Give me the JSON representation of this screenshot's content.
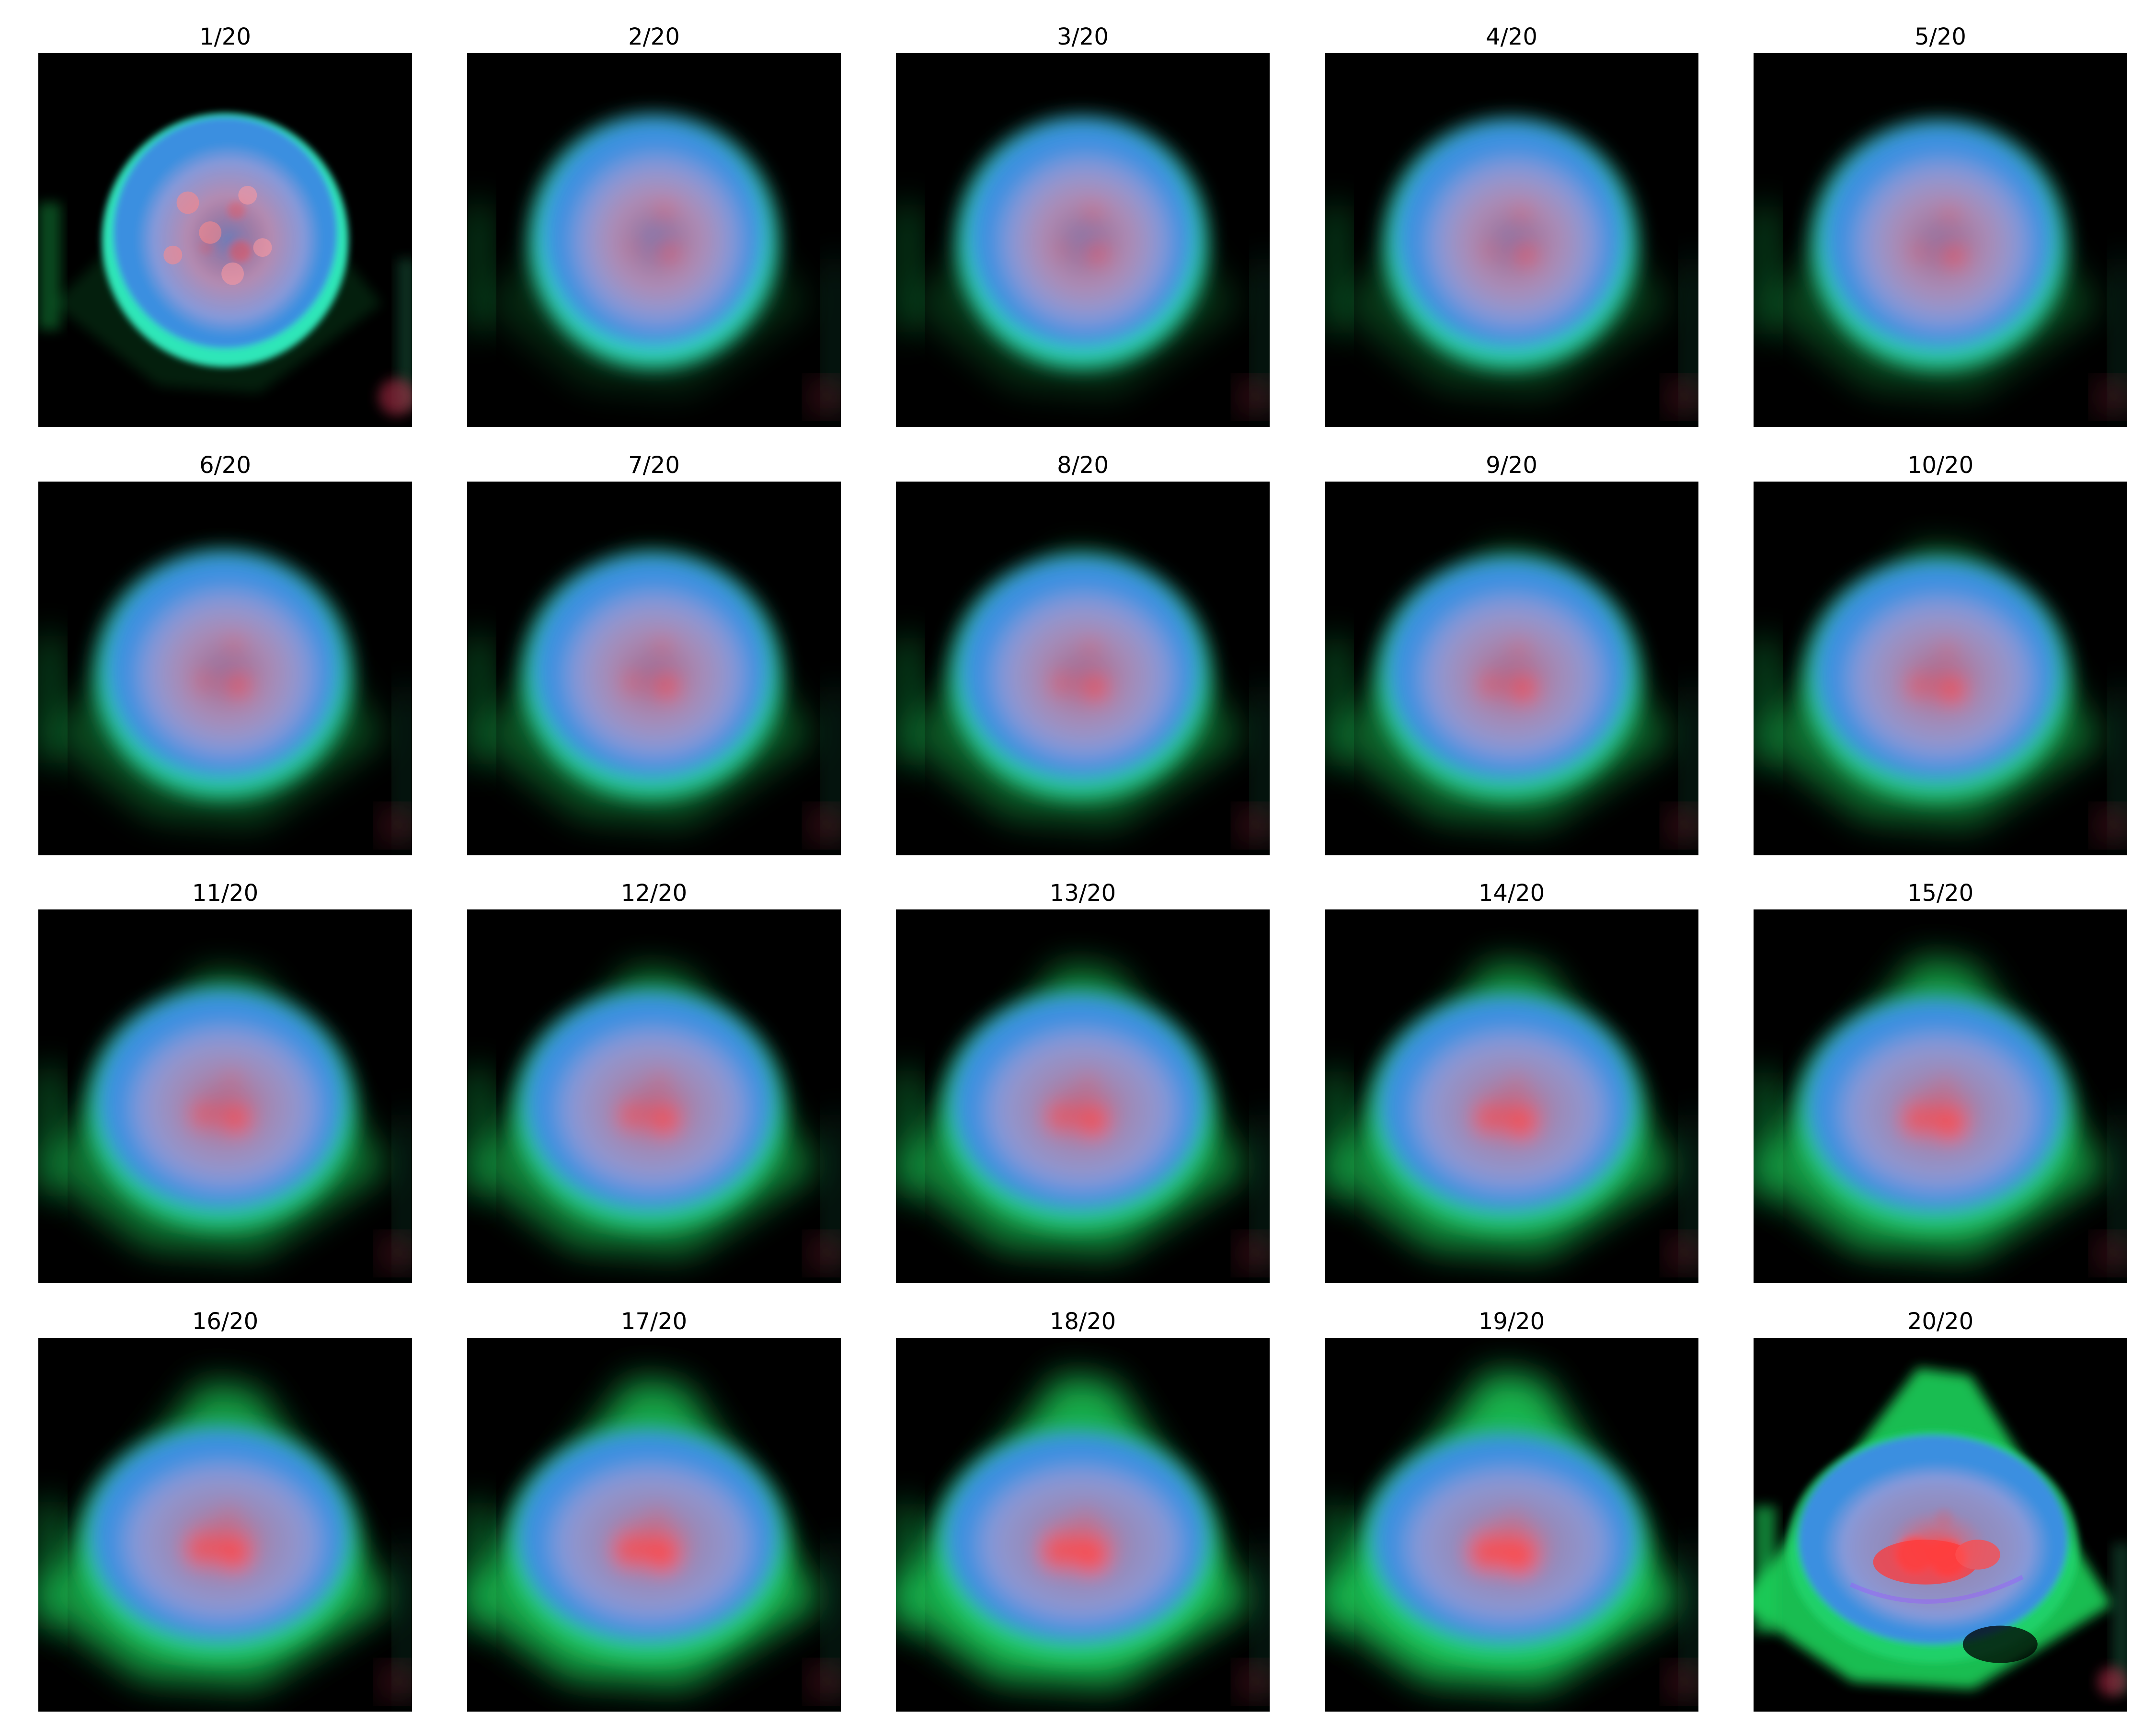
{
  "frames": [
    {
      "label": "1/20"
    },
    {
      "label": "2/20"
    },
    {
      "label": "3/20"
    },
    {
      "label": "4/20"
    },
    {
      "label": "5/20"
    },
    {
      "label": "6/20"
    },
    {
      "label": "7/20"
    },
    {
      "label": "8/20"
    },
    {
      "label": "9/20"
    },
    {
      "label": "10/20"
    },
    {
      "label": "11/20"
    },
    {
      "label": "12/20"
    },
    {
      "label": "13/20"
    },
    {
      "label": "14/20"
    },
    {
      "label": "15/20"
    },
    {
      "label": "16/20"
    },
    {
      "label": "17/20"
    },
    {
      "label": "18/20"
    },
    {
      "label": "19/20"
    },
    {
      "label": "20/20"
    }
  ],
  "colors": {
    "background": "#000000",
    "membrane_green": "#1fd25a",
    "ring_cyan": "#2fe6b8",
    "ring_blue": "#3a8fe0",
    "nucleus_pink": "#c98aa8",
    "nucleolus_red": "#ff4a4a"
  }
}
